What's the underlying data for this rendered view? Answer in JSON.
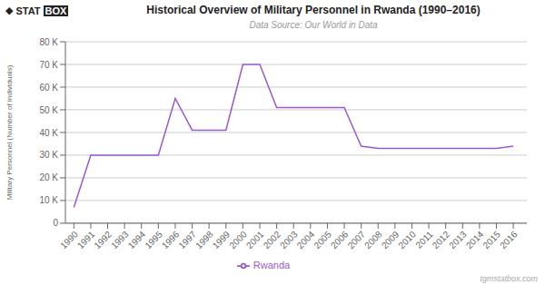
{
  "chart_data": {
    "type": "line",
    "title": "Historical Overview of Military Personnel in Rwanda (1990–2016)",
    "subtitle": "Data Source: Our World in Data",
    "y_label": "Military Personnel (Number of Individuals)",
    "x": [
      1990,
      1991,
      1992,
      1993,
      1994,
      1995,
      1996,
      1997,
      1998,
      1999,
      2000,
      2001,
      2002,
      2003,
      2004,
      2005,
      2006,
      2007,
      2008,
      2009,
      2010,
      2011,
      2012,
      2013,
      2014,
      2015,
      2016
    ],
    "series": [
      {
        "name": "Rwanda",
        "color": "#9b59d0",
        "values": [
          7000,
          30000,
          30000,
          30000,
          30000,
          30000,
          55000,
          41000,
          41000,
          41000,
          70000,
          70000,
          51000,
          51000,
          51000,
          51000,
          51000,
          34000,
          33000,
          33000,
          33000,
          33000,
          33000,
          33000,
          33000,
          33000,
          34000
        ]
      }
    ],
    "xlim": [
      1989.5,
      2016.8
    ],
    "xticks": [
      1990,
      1991,
      1992,
      1993,
      1994,
      1995,
      1996,
      1997,
      1998,
      1999,
      2000,
      2001,
      2002,
      2003,
      2004,
      2005,
      2006,
      2007,
      2008,
      2009,
      2010,
      2011,
      2012,
      2013,
      2014,
      2015,
      2016
    ],
    "ylim": [
      0,
      80000
    ],
    "yticks": [
      0,
      {
        "value": 10000,
        "label": "10 K"
      },
      {
        "value": 20000,
        "label": "20 K"
      },
      {
        "value": 30000,
        "label": "30 K"
      },
      {
        "value": 40000,
        "label": "40 K"
      },
      {
        "value": 50000,
        "label": "50 K"
      },
      {
        "value": 60000,
        "label": "60 K"
      },
      {
        "value": 70000,
        "label": "70 K"
      },
      {
        "value": 80000,
        "label": "80 K"
      }
    ],
    "grid": true,
    "legend": "bottom",
    "annotations": [
      "◆",
      "STAT",
      "BOX",
      "tgmstatbox.com"
    ]
  }
}
